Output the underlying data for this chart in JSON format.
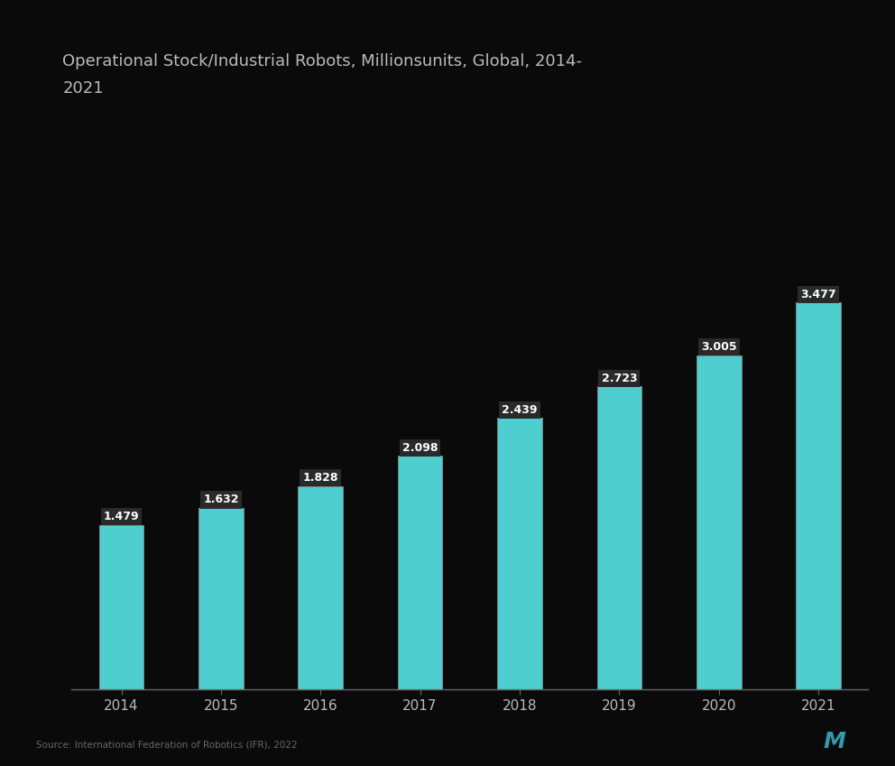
{
  "title_line1": "Operational Stock/Industrial Robots, Millionsunits, Global, 2014-",
  "title_line2": "2021",
  "years": [
    "2014",
    "2015",
    "2016",
    "2017",
    "2018",
    "2019",
    "2020",
    "2021"
  ],
  "values": [
    1.479,
    1.632,
    1.828,
    2.098,
    2.439,
    2.723,
    3.005,
    3.477
  ],
  "bar_color": "#4ECECE",
  "bar_edge_color": "#888888",
  "background_color": "#0a0a0a",
  "text_color": "#bbbbbb",
  "title_fontsize": 13,
  "tick_fontsize": 11,
  "value_fontsize": 9,
  "ylim": [
    0,
    5.2
  ],
  "bar_width": 0.45,
  "source_text": "Source: International Federation of Robotics (IFR), 2022"
}
